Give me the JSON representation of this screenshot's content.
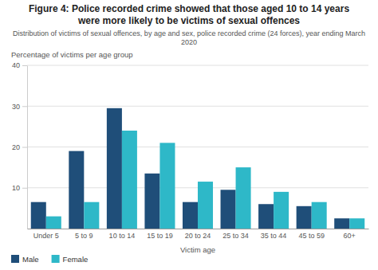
{
  "chart_data": {
    "type": "bar",
    "title": "Figure 4: Police recorded crime showed that those aged 10 to 14 years\nwere more likely to be victims of sexual offences",
    "subtitle": "Distribution of victims of sexual offences, by age and sex, police recorded crime (24 forces), year ending March\n2020",
    "x_label": "Victim age",
    "y_label": "Percentage of victims per age group",
    "categories": [
      "Under 5",
      "5 to 9",
      "10 to 14",
      "15 to 19",
      "20 to 24",
      "25 to 34",
      "35 to 44",
      "45 to 59",
      "60+"
    ],
    "series": [
      {
        "name": "Male",
        "color": "#1f4e79",
        "values": [
          6.5,
          19.0,
          29.5,
          13.5,
          6.5,
          9.5,
          6.0,
          5.5,
          2.5
        ]
      },
      {
        "name": "Female",
        "color": "#2eb8c8",
        "values": [
          3.0,
          6.5,
          24.0,
          21.0,
          11.5,
          15.0,
          9.0,
          6.5,
          2.5
        ]
      }
    ],
    "ylim": [
      0,
      40
    ],
    "yticks": [
      10,
      20,
      30,
      40
    ],
    "grid": true,
    "legend": "bottom"
  }
}
